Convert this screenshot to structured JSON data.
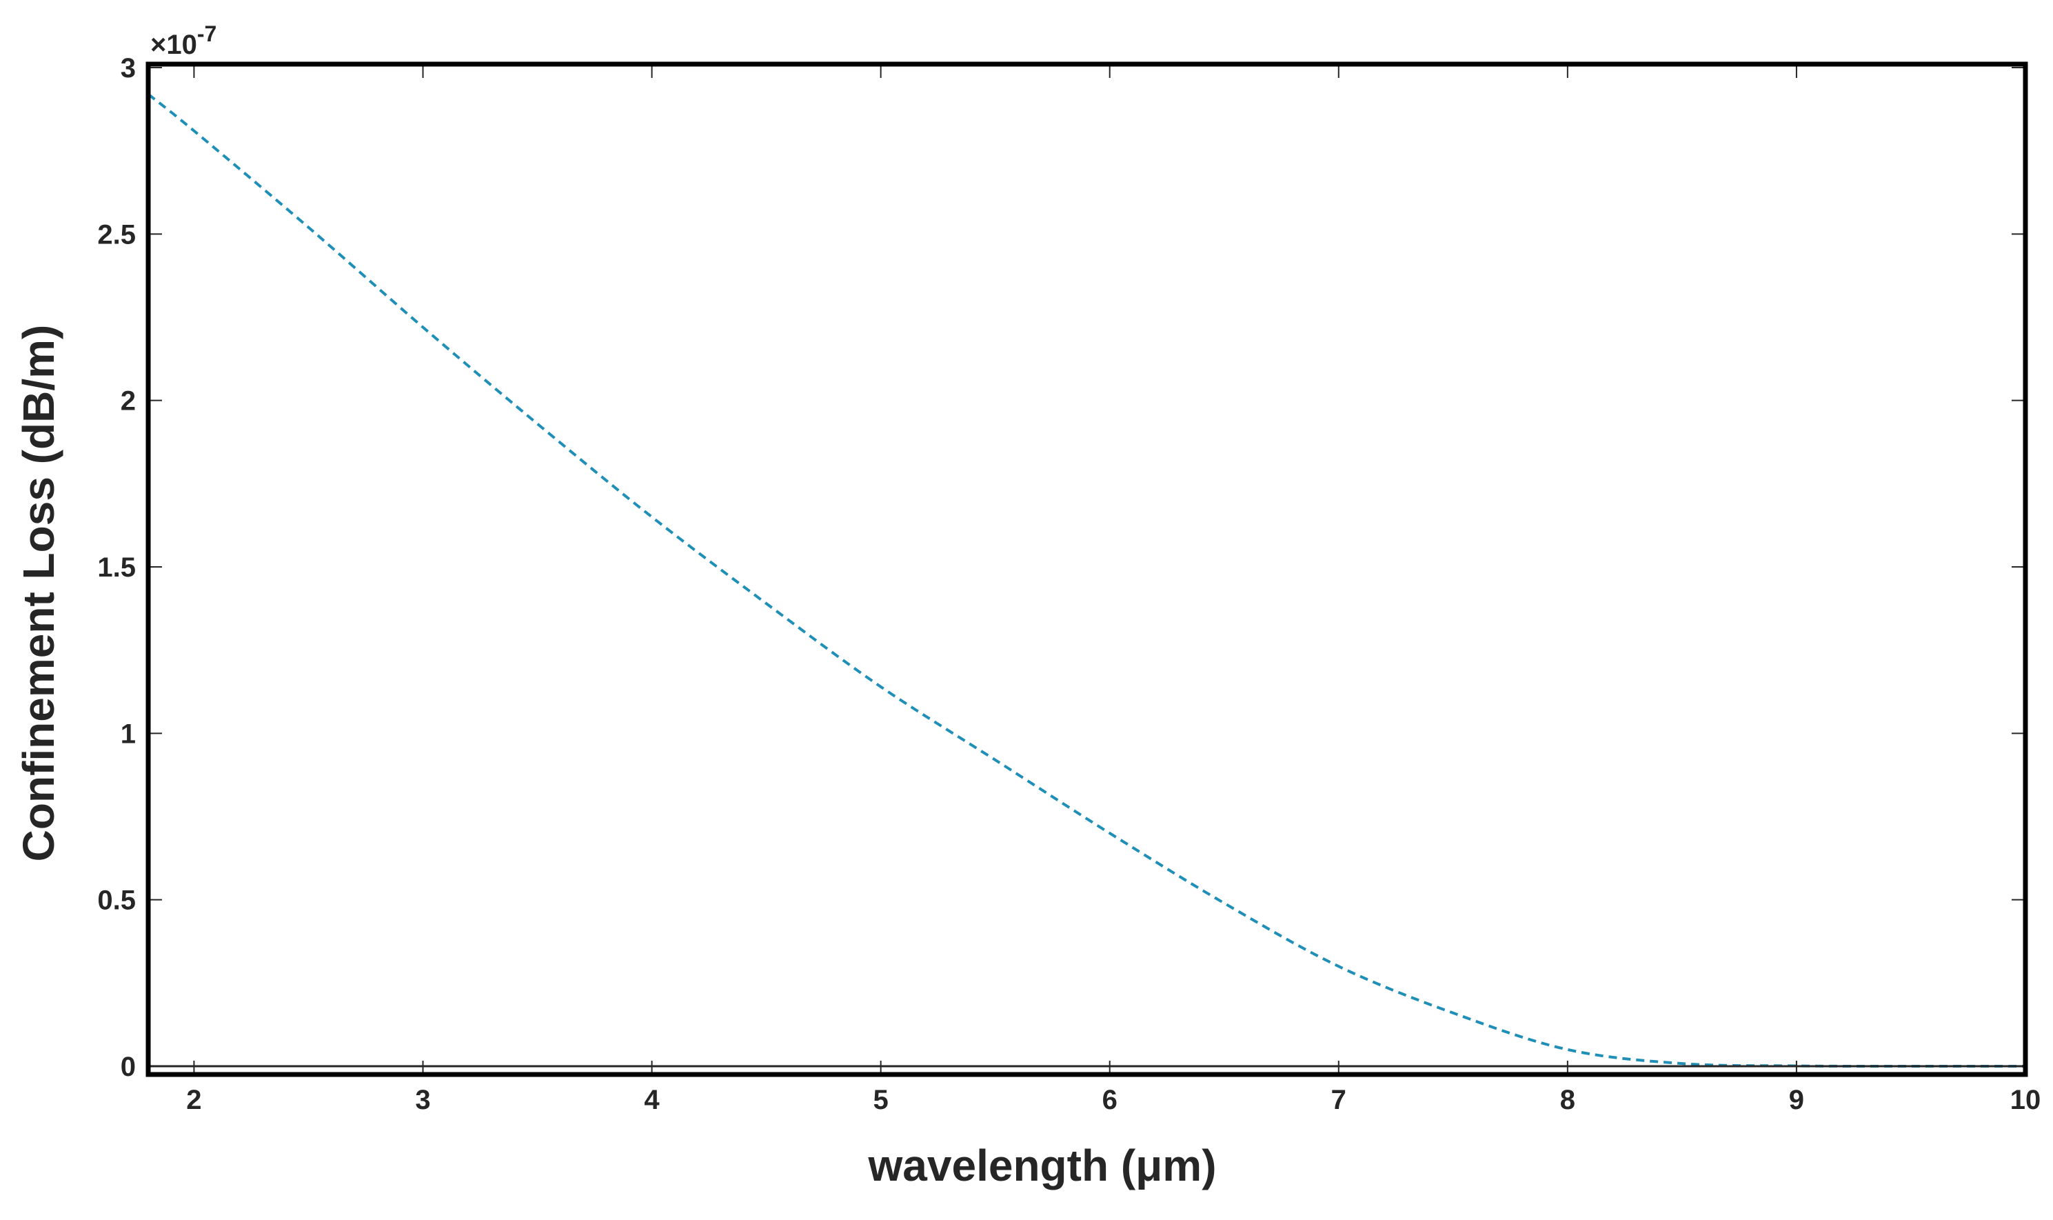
{
  "chart_data": {
    "type": "line",
    "title": "",
    "xlabel": "wavelength (μm)",
    "ylabel": "Confinement Loss (dB/m)",
    "y_multiplier": "×10",
    "y_exponent": "-7",
    "xlim": [
      1.8,
      10
    ],
    "ylim": [
      0,
      3
    ],
    "x_ticks": [
      2,
      3,
      4,
      5,
      6,
      7,
      8,
      9,
      10
    ],
    "y_ticks": [
      0,
      0.5,
      1,
      1.5,
      2,
      2.5,
      3
    ],
    "x_tick_labels": [
      "2",
      "3",
      "4",
      "5",
      "6",
      "7",
      "8",
      "9",
      "10"
    ],
    "y_tick_labels": [
      "0",
      "0.5",
      "1",
      "1.5",
      "2",
      "2.5",
      "3"
    ],
    "grid": false,
    "series": [
      {
        "line_style": "dashed",
        "color": "#1f8fb8",
        "x": [
          1.8,
          2.0,
          2.5,
          3.0,
          3.5,
          4.0,
          4.5,
          5.0,
          5.5,
          6.0,
          6.5,
          7.0,
          7.5,
          8.0,
          8.5,
          9.0,
          9.5,
          10.0
        ],
        "values": [
          2.92,
          2.81,
          2.52,
          2.22,
          1.93,
          1.65,
          1.39,
          1.14,
          0.92,
          0.7,
          0.49,
          0.3,
          0.16,
          0.05,
          0.008,
          0.001,
          0.0,
          0.0
        ]
      }
    ]
  }
}
